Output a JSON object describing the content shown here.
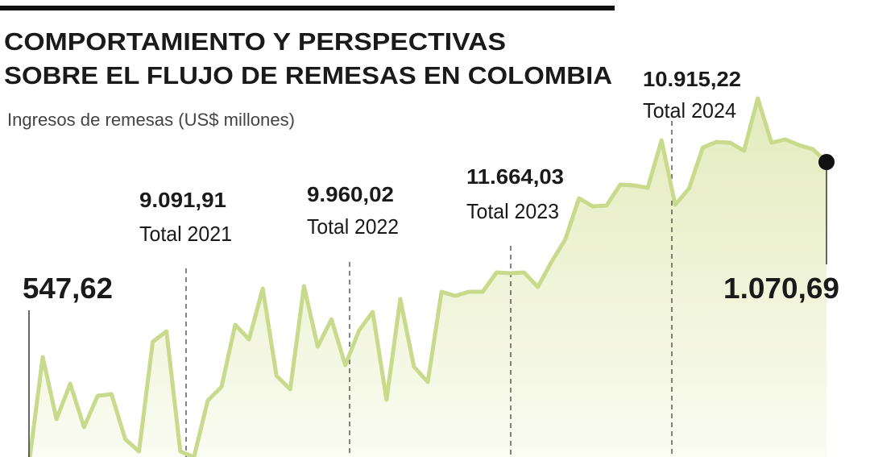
{
  "chart_data": {
    "type": "area",
    "title": [
      "COMPORTAMIENTO Y PERSPECTIVAS",
      "SOBRE EL FLUJO DE REMESAS EN COLOMBIA"
    ],
    "subtitle": "Ingresos de remesas (US$ millones)",
    "color": "#c8da8c",
    "values": [
      547.62,
      732.2,
      624.5,
      686.1,
      610.6,
      665.1,
      667.9,
      589.6,
      568.6,
      758.8,
      777.0,
      568.6,
      558.8,
      656.7,
      680.5,
      788.2,
      763.0,
      851.1,
      700.0,
      676.3,
      855.3,
      750.4,
      797.9,
      718.2,
      778.4,
      810.5,
      658.1,
      832.9,
      715.4,
      688.9,
      845.5,
      838.5,
      845.5,
      845.5,
      879.1,
      877.7,
      879.1,
      853.9,
      897.3,
      936.4,
      1007.7,
      993.8,
      995.2,
      1031.5,
      1030.1,
      1025.9,
      1108.4,
      996.6,
      1024.5,
      1095.9,
      1105.6,
      1104.2,
      1090.3,
      1181.2,
      1104.2,
      1109.8,
      1100.0,
      1093.1,
      1070.69
    ],
    "value_labels": [
      "547,62",
      null,
      null,
      null,
      null,
      null,
      null,
      null,
      null,
      null,
      null,
      null,
      null,
      null,
      null,
      null,
      null,
      null,
      null,
      null,
      null,
      null,
      null,
      null,
      null,
      null,
      null,
      null,
      null,
      null,
      null,
      null,
      null,
      null,
      null,
      null,
      null,
      null,
      null,
      null,
      null,
      null,
      null,
      null,
      null,
      null,
      null,
      null,
      null,
      null,
      null,
      null,
      null,
      null,
      null,
      null,
      null,
      null,
      "1.070,69"
    ],
    "annotations": [
      {
        "label": "9.091,91",
        "text": "Total 2021"
      },
      {
        "label": "9.960,02",
        "text": "Total 2022"
      },
      {
        "label": "11.664,03",
        "text": "Total 2023"
      },
      {
        "label": "10.915,22",
        "text": "Total 2024"
      }
    ]
  }
}
